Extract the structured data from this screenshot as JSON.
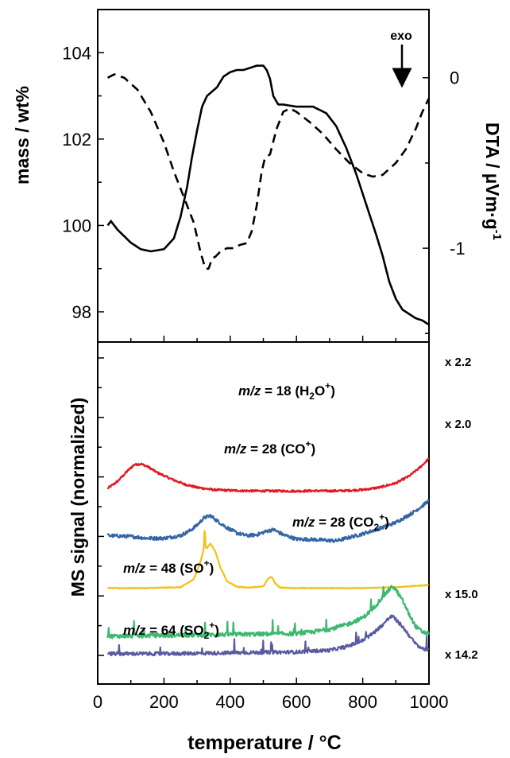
{
  "chart_data": {
    "type": "line",
    "x_axis": {
      "label": "temperature / °C",
      "range": [
        0,
        1000
      ],
      "ticks": [
        0,
        200,
        400,
        600,
        800,
        1000
      ]
    },
    "panels": [
      {
        "id": "thermal",
        "left_axis": {
          "label": "mass / wt%",
          "range": [
            97.3,
            105
          ],
          "ticks": [
            98,
            100,
            102,
            104
          ]
        },
        "right_axis": {
          "label_main": "DTA / µVm·g",
          "label_sup": "-1",
          "range": [
            -1.55,
            0.4
          ],
          "ticks": [
            0,
            -1
          ]
        },
        "annotation": "exo",
        "series": [
          {
            "axis": "left",
            "style": "solid",
            "color": "#000000",
            "x": [
              30,
              40,
              60,
              80,
              100,
              130,
              160,
              200,
              230,
              250,
              270,
              285,
              300,
              315,
              330,
              345,
              360,
              380,
              400,
              420,
              440,
              460,
              480,
              500,
              510,
              520,
              530,
              545,
              560,
              600,
              650,
              690,
              720,
              750,
              780,
              810,
              840,
              860,
              880,
              900,
              920,
              940,
              960,
              980,
              1000
            ],
            "y": [
              100.0,
              100.1,
              99.9,
              99.75,
              99.6,
              99.45,
              99.4,
              99.45,
              99.7,
              100.2,
              100.9,
              101.6,
              102.2,
              102.75,
              103.0,
              103.1,
              103.2,
              103.45,
              103.55,
              103.6,
              103.6,
              103.65,
              103.7,
              103.7,
              103.6,
              103.4,
              103.0,
              102.8,
              102.8,
              102.75,
              102.75,
              102.6,
              102.3,
              101.8,
              101.2,
              100.5,
              99.8,
              99.3,
              98.7,
              98.3,
              98.05,
              97.95,
              97.85,
              97.8,
              97.7
            ]
          },
          {
            "axis": "right",
            "style": "dashed",
            "color": "#000000",
            "x": [
              30,
              50,
              80,
              120,
              160,
              200,
              230,
              260,
              290,
              310,
              325,
              335,
              345,
              355,
              370,
              390,
              410,
              430,
              450,
              465,
              480,
              495,
              505,
              520,
              540,
              560,
              580,
              600,
              640,
              680,
              720,
              760,
              800,
              830,
              860,
              900,
              930,
              960,
              980,
              1000
            ],
            "y": [
              0.0,
              0.02,
              0.0,
              -0.07,
              -0.2,
              -0.38,
              -0.55,
              -0.7,
              -0.85,
              -1.02,
              -1.12,
              -1.12,
              -1.06,
              -1.05,
              -1.02,
              -1.0,
              -1.0,
              -0.98,
              -0.97,
              -0.9,
              -0.75,
              -0.55,
              -0.47,
              -0.45,
              -0.3,
              -0.2,
              -0.18,
              -0.2,
              -0.26,
              -0.33,
              -0.42,
              -0.5,
              -0.56,
              -0.58,
              -0.57,
              -0.5,
              -0.42,
              -0.3,
              -0.2,
              -0.12
            ]
          }
        ]
      },
      {
        "id": "ms",
        "y_label": "MS signal (normalized)",
        "series": [
          {
            "name": "m/z = 18 (H2O+)",
            "label": {
              "italic": "m/z",
              "rest": " = 18 (H",
              "sub": "2",
              "mid": "O",
              "sup": "+",
              "end": ")"
            },
            "factor": "x 2.2",
            "color": "#e01a22",
            "offset": 9.3,
            "x": [
              30,
              60,
              90,
              110,
              130,
              150,
              180,
              220,
              260,
              300,
              350,
              400,
              450,
              500,
              550,
              600,
              650,
              700,
              750,
              800,
              850,
              900,
              940,
              970,
              1000
            ],
            "y": [
              0.2,
              0.6,
              1.2,
              1.55,
              1.6,
              1.45,
              1.1,
              0.75,
              0.45,
              0.25,
              0.12,
              0.08,
              0.06,
              0.05,
              0.05,
              0.04,
              0.06,
              0.05,
              0.07,
              0.12,
              0.25,
              0.5,
              0.9,
              1.35,
              1.9
            ]
          },
          {
            "name": "m/z = 28 (CO+)",
            "label": {
              "italic": "m/z",
              "rest": " = 28 (CO",
              "sub": "",
              "mid": "",
              "sup": "+",
              "end": ")"
            },
            "factor": "x 2.0",
            "color": "#3565a6",
            "offset": 6.6,
            "x": [
              30,
              100,
              150,
              200,
              250,
              280,
              300,
              320,
              340,
              360,
              390,
              420,
              450,
              480,
              510,
              530,
              560,
              600,
              650,
              700,
              720,
              750,
              800,
              850,
              900,
              950,
              980,
              1000
            ],
            "y": [
              0.2,
              0.15,
              0.05,
              0.05,
              0.2,
              0.5,
              0.8,
              1.2,
              1.35,
              1.05,
              0.65,
              0.35,
              0.2,
              0.25,
              0.45,
              0.55,
              0.25,
              0.0,
              -0.02,
              -0.08,
              -0.1,
              0.05,
              0.3,
              0.6,
              0.95,
              1.5,
              1.9,
              2.2
            ]
          },
          {
            "name": "m/z = 28 (CO2+)",
            "label": {
              "italic": "m/z",
              "rest": " = 28 (CO",
              "sub": "2",
              "mid": "",
              "sup": "+",
              "end": ")"
            },
            "factor": "",
            "color": "#f5c014",
            "offset": 3.8,
            "x": [
              30,
              150,
              250,
              290,
              310,
              320,
              323,
              326,
              330,
              340,
              355,
              370,
              390,
              420,
              460,
              500,
              515,
              525,
              535,
              550,
              600,
              700,
              800,
              900,
              1000
            ],
            "y": [
              0.0,
              0.0,
              0.05,
              0.5,
              1.5,
              2.2,
              3.5,
              2.3,
              2.3,
              2.55,
              2.1,
              1.2,
              0.4,
              0.08,
              0.03,
              0.1,
              0.55,
              0.65,
              0.3,
              0.03,
              0.0,
              0.0,
              0.0,
              0.05,
              0.18
            ]
          },
          {
            "name": "m/z = 48 (SO+)",
            "label": {
              "italic": "m/z",
              "rest": " = 48 (SO",
              "sub": "",
              "mid": "",
              "sup": "+",
              "end": ")"
            },
            "factor": "x 15.0",
            "color": "#3cb96e",
            "offset": 1.0,
            "x": [
              30,
              200,
              400,
              600,
              650,
              700,
              750,
              800,
              830,
              860,
              880,
              890,
              900,
              920,
              940,
              960,
              980,
              1000
            ],
            "y": [
              0.05,
              0.1,
              0.15,
              0.2,
              0.3,
              0.45,
              0.7,
              1.1,
              1.6,
              2.3,
              2.7,
              2.9,
              2.7,
              2.1,
              1.3,
              0.6,
              0.3,
              0.2
            ]
          },
          {
            "name": "m/z = 64 (SO2+)",
            "label": {
              "italic": "m/z",
              "rest": " = 64 (SO",
              "sub": "2",
              "mid": "",
              "sup": "+",
              "end": ")"
            },
            "factor": "x 14.2",
            "color": "#5b59a1",
            "offset": 0.0,
            "x": [
              30,
              200,
              400,
              600,
              700,
              750,
              800,
              830,
              860,
              880,
              890,
              900,
              920,
              940,
              960,
              980,
              1000
            ],
            "y": [
              0.05,
              0.05,
              0.1,
              0.15,
              0.25,
              0.45,
              0.8,
              1.2,
              1.7,
              2.1,
              2.2,
              2.0,
              1.6,
              1.1,
              0.6,
              0.35,
              0.25
            ]
          }
        ]
      }
    ]
  }
}
